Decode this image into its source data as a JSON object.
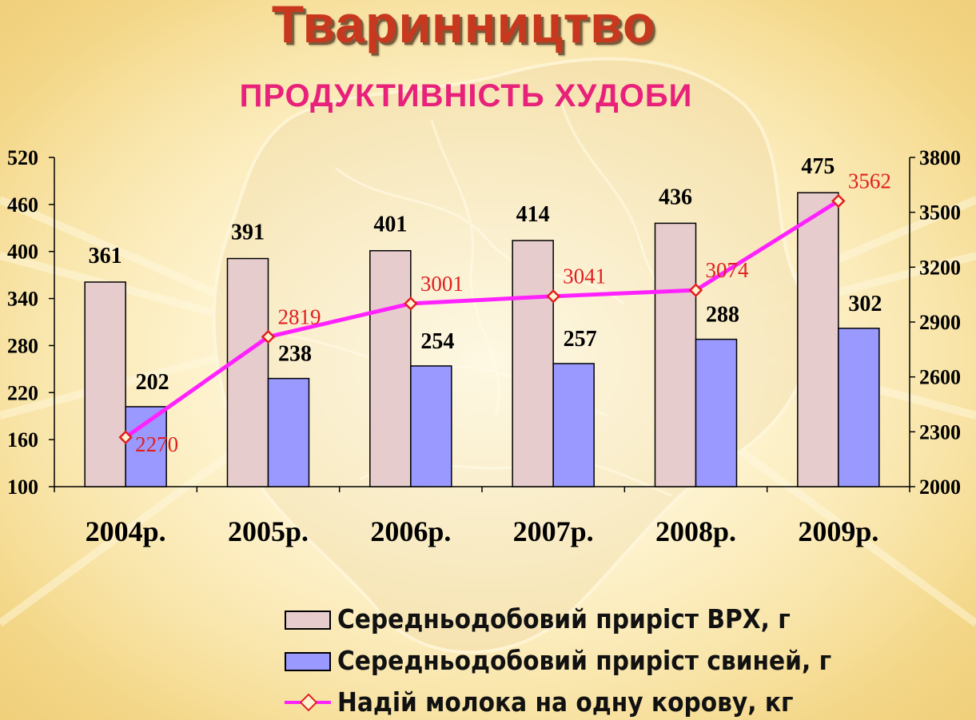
{
  "title": "Тваринництво",
  "subtitle": "ПРОДУКТИВНІСТЬ ХУДОБИ",
  "colors": {
    "cattle_bar": "#e6cccc",
    "pig_bar": "#9999ff",
    "milk_line": "#ff22ff",
    "milk_marker": "#e02020",
    "title": "#c8381e",
    "subtitle": "#e8217a"
  },
  "chart_data": {
    "type": "bar",
    "categories": [
      "2004р.",
      "2005р.",
      "2006р.",
      "2007р.",
      "2008р.",
      "2009р."
    ],
    "series": [
      {
        "name": "Середньодобовий приріст ВРХ, г",
        "type": "bar",
        "axis": "left",
        "values": [
          361,
          391,
          401,
          414,
          436,
          475
        ]
      },
      {
        "name": "Середньодобовий приріст свиней, г",
        "type": "bar",
        "axis": "left",
        "values": [
          202,
          238,
          254,
          257,
          288,
          302
        ]
      },
      {
        "name": "Надій молока на одну корову, кг",
        "type": "line",
        "axis": "right",
        "marker": "diamond",
        "values": [
          2270,
          2819,
          3001,
          3041,
          3074,
          3562
        ]
      }
    ],
    "y_left": {
      "min": 100,
      "max": 520,
      "ticks": [
        100,
        160,
        220,
        280,
        340,
        400,
        460,
        520
      ]
    },
    "y_right": {
      "min": 2000,
      "max": 3800,
      "ticks": [
        2000,
        2300,
        2600,
        2900,
        3200,
        3500,
        3800
      ]
    },
    "legend_position": "bottom",
    "grid": false
  }
}
